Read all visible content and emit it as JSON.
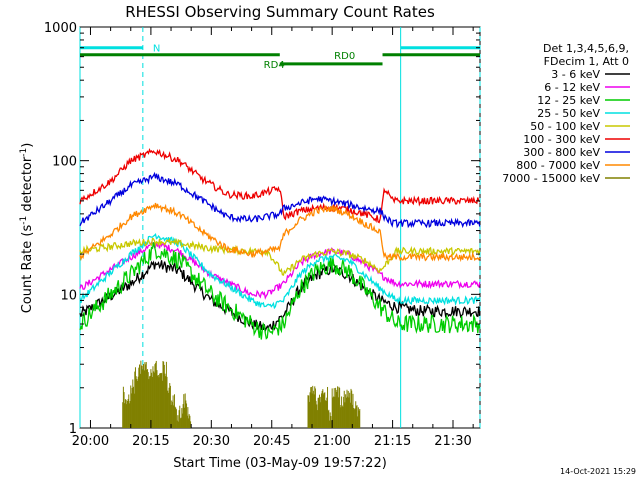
{
  "chart_data": {
    "type": "line",
    "title": "RHESSI Observing Summary Count Rates",
    "xlabel": "Start Time (03-May-09 19:57:22)",
    "ylabel_main": "Count Rate (s",
    "ylabel_sup1": "-1",
    "ylabel_mid": " detector",
    "ylabel_sup2": "-1",
    "ylabel_end": ")",
    "y_scale": "log",
    "ylim": [
      1,
      1000
    ],
    "xlim_minutes": [
      -2.6,
      96.7
    ],
    "x_start": "19:57:22",
    "x_ticks": [
      {
        "m": 0,
        "label": "20:00"
      },
      {
        "m": 15,
        "label": "20:15"
      },
      {
        "m": 30,
        "label": "20:30"
      },
      {
        "m": 45,
        "label": "20:45"
      },
      {
        "m": 60,
        "label": "21:00"
      },
      {
        "m": 75,
        "label": "21:15"
      },
      {
        "m": 90,
        "label": "21:30"
      }
    ],
    "y_ticks": [
      {
        "v": 1,
        "label": "1"
      },
      {
        "v": 10,
        "label": "10"
      },
      {
        "v": 100,
        "label": "100"
      },
      {
        "v": 1000,
        "label": "1000"
      }
    ],
    "legend_header": [
      "Det 1,3,4,5,6,9,",
      "FDecim 1, Att 0"
    ],
    "legend_position": "right",
    "series": [
      {
        "name": "3 - 6 keV",
        "color": "#000000",
        "x": [
          -2.6,
          10,
          16,
          22,
          30,
          40,
          44,
          48,
          52,
          56,
          60,
          64,
          68,
          72,
          76,
          82,
          96.7
        ],
        "values": [
          7,
          12,
          17,
          15,
          9,
          6,
          5.5,
          7,
          11,
          14,
          15.5,
          14,
          11,
          9,
          8,
          7.5,
          7.5
        ]
      },
      {
        "name": "6 - 12 keV",
        "color": "#ee00ee",
        "x": [
          -2.6,
          10,
          16,
          22,
          30,
          40,
          44,
          48,
          52,
          56,
          60,
          64,
          68,
          72,
          76,
          82,
          96.7
        ],
        "values": [
          11,
          19,
          24,
          21,
          14,
          10,
          10,
          12,
          17,
          20,
          21,
          20,
          17,
          14,
          12,
          12,
          12
        ]
      },
      {
        "name": "12 - 25 keV",
        "color": "#00cc00",
        "x": [
          -2.6,
          10,
          16,
          22,
          30,
          40,
          44,
          48,
          52,
          56,
          60,
          64,
          68,
          72,
          76,
          82,
          96.7
        ],
        "values": [
          6,
          14,
          22,
          18,
          10,
          6,
          5,
          6,
          11,
          15,
          17,
          15,
          11,
          8,
          6,
          6,
          6
        ]
      },
      {
        "name": "25 - 50 keV",
        "color": "#00e0e0",
        "x": [
          -2.6,
          10,
          16,
          22,
          30,
          40,
          44,
          48,
          52,
          56,
          60,
          64,
          68,
          72,
          76,
          82,
          96.7
        ],
        "values": [
          9,
          20,
          28,
          24,
          14,
          9,
          8,
          9,
          14,
          18,
          19,
          18,
          14,
          11,
          9,
          9,
          9
        ]
      },
      {
        "name": "50 - 100 keV",
        "color": "#c8c800",
        "x": [
          -2.6,
          10,
          16,
          22,
          30,
          40,
          44,
          48,
          52,
          56,
          60,
          64,
          68,
          72,
          76,
          82,
          96.7
        ],
        "values": [
          21,
          24,
          25,
          24,
          22,
          21,
          21,
          14,
          18,
          20,
          21,
          20,
          18,
          15,
          21,
          21,
          21
        ]
      },
      {
        "name": "100 - 300 keV",
        "color": "#ee0000",
        "x": [
          -2.6,
          5,
          10,
          16,
          22,
          28,
          34,
          40,
          47,
          48,
          52,
          56,
          60,
          64,
          68,
          72,
          73,
          75,
          80,
          96.7
        ],
        "values": [
          50,
          70,
          100,
          118,
          100,
          72,
          56,
          54,
          62,
          38,
          42,
          44,
          45,
          43,
          40,
          36,
          62,
          50,
          50,
          50
        ]
      },
      {
        "name": "300 - 800 keV",
        "color": "#0000dd",
        "x": [
          -2.6,
          5,
          10,
          16,
          22,
          28,
          34,
          40,
          47,
          48,
          52,
          56,
          60,
          64,
          68,
          72,
          73,
          75,
          80,
          96.7
        ],
        "values": [
          34,
          50,
          65,
          76,
          66,
          50,
          38,
          36,
          40,
          44,
          48,
          52,
          50,
          47,
          44,
          42,
          38,
          34,
          34,
          34
        ]
      },
      {
        "name": "800 - 7000 keV",
        "color": "#ff8800",
        "x": [
          -2.6,
          5,
          10,
          16,
          22,
          28,
          34,
          40,
          47,
          48,
          52,
          56,
          60,
          64,
          68,
          72,
          73,
          75,
          80,
          96.7
        ],
        "values": [
          19,
          28,
          38,
          47,
          40,
          29,
          22,
          20,
          22,
          28,
          36,
          42,
          44,
          40,
          34,
          29,
          19,
          19,
          19,
          19
        ]
      },
      {
        "name": "7000 - 15000 keV",
        "color": "#808000",
        "x": [
          8,
          9,
          10,
          11,
          12,
          13,
          14,
          15,
          16,
          17,
          18,
          19,
          20,
          21,
          22,
          23,
          24,
          54,
          55,
          56,
          57,
          58,
          59,
          60,
          61,
          62,
          63,
          64,
          65,
          66
        ],
        "values": [
          1.8,
          1.6,
          2.1,
          2.5,
          2.8,
          2.8,
          2.5,
          2.8,
          2.8,
          2.5,
          2.8,
          2.1,
          1.6,
          1.3,
          1.3,
          1.6,
          1.3,
          1.8,
          1.8,
          1.6,
          1.8,
          1.8,
          1.3,
          1.8,
          1.8,
          1.6,
          1.8,
          1.8,
          1.6,
          1.3
        ]
      }
    ],
    "annotations": [
      {
        "text": "N",
        "color": "#00e0e0"
      },
      {
        "text": "RD0",
        "color": "#008000"
      },
      {
        "text": "RD4",
        "color": "#008000"
      }
    ],
    "state_bars": {
      "night": [
        {
          "from": -2.6,
          "to": 13,
          "color": "#00e0e0"
        },
        {
          "from": 77,
          "to": 96.7,
          "color": "#00e0e0"
        }
      ],
      "rd0": [
        {
          "from": -2.6,
          "to": 47,
          "color": "#008000"
        },
        {
          "from": 72.5,
          "to": 96.7,
          "color": "#008000"
        }
      ],
      "rd4": [
        {
          "from": 47,
          "to": 72.5,
          "color": "#008000"
        }
      ]
    },
    "vlines": [
      {
        "m": -2.6,
        "color": "#00e0e0",
        "style": "solid"
      },
      {
        "m": 13,
        "color": "#00e0e0",
        "style": "dashed"
      },
      {
        "m": 77,
        "color": "#00e0e0",
        "style": "solid"
      },
      {
        "m": 96.7,
        "color": "#00e0e0",
        "style": "dashed"
      }
    ],
    "timestamp": "14-Oct-2021 15:29"
  }
}
